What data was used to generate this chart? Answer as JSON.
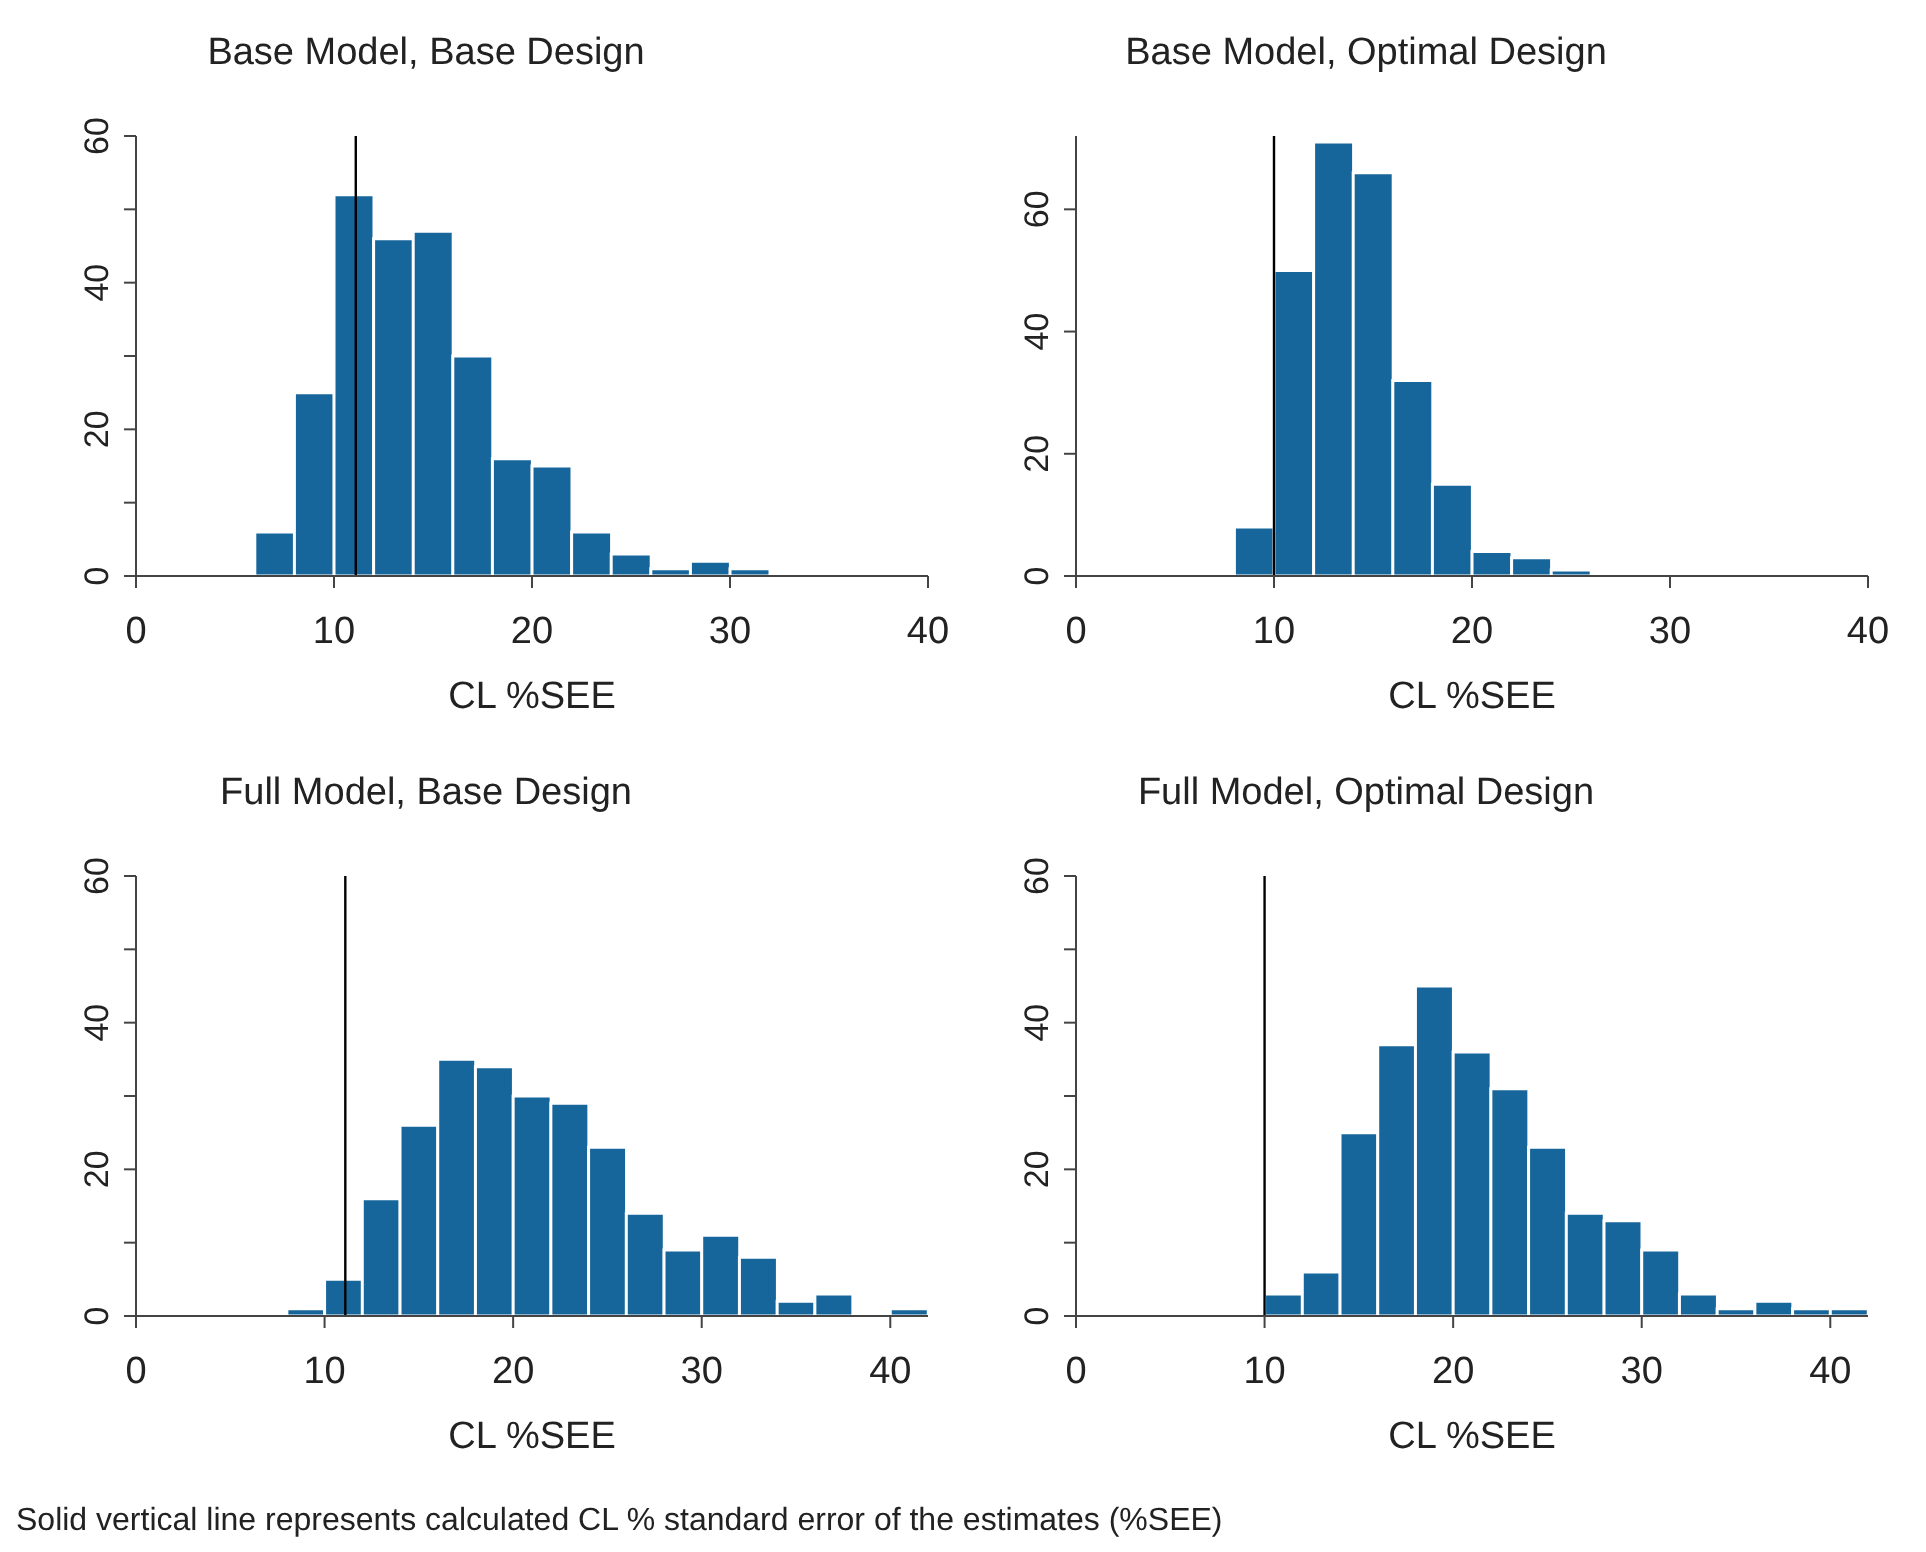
{
  "chart_data": [
    {
      "type": "histogram",
      "title": "Base Model, Base Design",
      "xlabel": "CL %SEE",
      "color": "#17669b",
      "bins": [
        6,
        8,
        10,
        12,
        14,
        16,
        18,
        20,
        22,
        24,
        26,
        28,
        30,
        32
      ],
      "values": [
        6,
        25,
        52,
        46,
        47,
        30,
        16,
        15,
        6,
        3,
        1,
        2,
        1
      ],
      "xlim": [
        0,
        40
      ],
      "xticks": [
        0,
        10,
        20,
        30,
        40
      ],
      "ylim": [
        0,
        60
      ],
      "yticks": [
        0,
        {
          "value": 10,
          "label": null
        },
        20,
        {
          "value": 30,
          "label": null
        },
        40,
        {
          "value": 50,
          "label": null
        },
        60
      ],
      "ref_lines": [
        {
          "axis": "x",
          "value": 11.1,
          "color": "#000000"
        }
      ],
      "grid": false,
      "legend": false
    },
    {
      "type": "histogram",
      "title": "Base Model, Optimal Design",
      "xlabel": "CL %SEE",
      "color": "#17669b",
      "bins": [
        8,
        10,
        12,
        14,
        16,
        18,
        20,
        22,
        24,
        26
      ],
      "values": [
        8,
        50,
        71,
        66,
        32,
        15,
        4,
        3,
        1
      ],
      "xlim": [
        0,
        40
      ],
      "xticks": [
        0,
        10,
        20,
        30,
        40
      ],
      "ylim": [
        0,
        72
      ],
      "yticks": [
        0,
        20,
        40,
        60
      ],
      "ref_lines": [
        {
          "axis": "x",
          "value": 10,
          "color": "#000000"
        }
      ],
      "grid": false,
      "legend": false
    },
    {
      "type": "histogram",
      "title": "Full Model, Base Design",
      "xlabel": "CL %SEE",
      "color": "#17669b",
      "bins": [
        8,
        10,
        12,
        14,
        16,
        18,
        20,
        22,
        24,
        26,
        28,
        30,
        32,
        34,
        36,
        38,
        40,
        42
      ],
      "values": [
        1,
        5,
        16,
        26,
        35,
        34,
        30,
        29,
        23,
        14,
        9,
        11,
        8,
        2,
        3,
        0,
        1
      ],
      "xlim": [
        0,
        42
      ],
      "xticks": [
        0,
        10,
        20,
        30,
        40
      ],
      "ylim": [
        0,
        60
      ],
      "yticks": [
        0,
        {
          "value": 10,
          "label": null
        },
        20,
        {
          "value": 30,
          "label": null
        },
        40,
        {
          "value": 50,
          "label": null
        },
        60
      ],
      "ref_lines": [
        {
          "axis": "x",
          "value": 11.1,
          "color": "#000000"
        }
      ],
      "grid": false,
      "legend": false,
      "annotations": [
        "Solid vertical line represents calculated CL % standard error of the estimates (%SEE)"
      ]
    },
    {
      "type": "histogram",
      "title": "Full Model, Optimal Design",
      "xlabel": "CL %SEE",
      "color": "#17669b",
      "bins": [
        10,
        12,
        14,
        16,
        18,
        20,
        22,
        24,
        26,
        28,
        30,
        32,
        34,
        36,
        38,
        40,
        42
      ],
      "values": [
        3,
        6,
        25,
        37,
        45,
        36,
        31,
        23,
        14,
        13,
        9,
        3,
        1,
        2,
        1,
        1
      ],
      "xlim": [
        0,
        42
      ],
      "xticks": [
        0,
        10,
        20,
        30,
        40
      ],
      "ylim": [
        0,
        60
      ],
      "yticks": [
        0,
        {
          "value": 10,
          "label": null
        },
        20,
        {
          "value": 30,
          "label": null
        },
        40,
        {
          "value": 50,
          "label": null
        },
        60
      ],
      "ref_lines": [
        {
          "axis": "x",
          "value": 10,
          "color": "#000000"
        }
      ],
      "grid": false,
      "legend": false
    }
  ]
}
